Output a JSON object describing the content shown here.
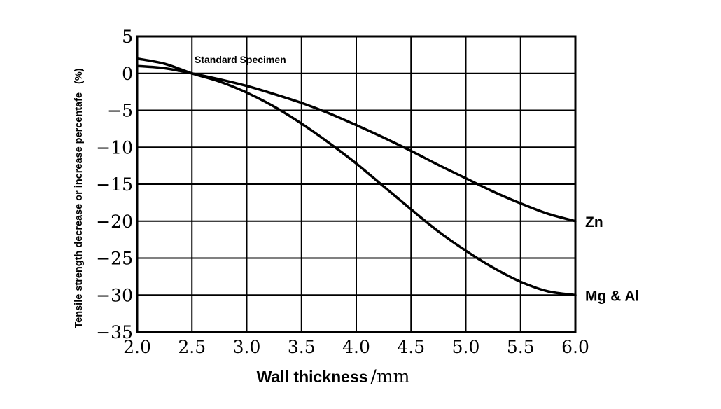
{
  "chart_data": {
    "type": "line",
    "xlabel": "Wall thickness",
    "xunit": "/mm",
    "ylabel": "Tensile strength decrease or increase percentafe",
    "yunit": "(%)",
    "xlim": [
      2.0,
      6.0
    ],
    "ylim": [
      -35,
      5
    ],
    "grid": true,
    "x_ticks": [
      "2.0",
      "2.5",
      "3.0",
      "3.5",
      "4.0",
      "4.5",
      "5.0",
      "5.5",
      "6.0"
    ],
    "y_ticks": [
      "5",
      "0",
      "−5",
      "−10",
      "−15",
      "−20",
      "−25",
      "−30",
      "−35"
    ],
    "annotation": "Standard Specimen",
    "series": [
      {
        "name": "Zn",
        "x": [
          2.0,
          2.25,
          2.5,
          2.75,
          3.0,
          3.25,
          3.5,
          3.75,
          4.0,
          4.25,
          4.5,
          4.75,
          5.0,
          5.25,
          5.5,
          5.75,
          6.0
        ],
        "y": [
          1.0,
          0.7,
          0.0,
          -0.8,
          -1.7,
          -2.8,
          -4.0,
          -5.4,
          -7.0,
          -8.7,
          -10.5,
          -12.4,
          -14.2,
          -16.0,
          -17.6,
          -19.0,
          -20.0
        ]
      },
      {
        "name": "Mg & Al",
        "x": [
          2.0,
          2.25,
          2.5,
          2.75,
          3.0,
          3.25,
          3.5,
          3.75,
          4.0,
          4.25,
          4.5,
          4.75,
          5.0,
          5.25,
          5.5,
          5.75,
          6.0
        ],
        "y": [
          2.0,
          1.3,
          0.0,
          -1.1,
          -2.6,
          -4.5,
          -6.8,
          -9.4,
          -12.2,
          -15.3,
          -18.4,
          -21.4,
          -24.0,
          -26.3,
          -28.2,
          -29.5,
          -30.0
        ]
      }
    ]
  }
}
